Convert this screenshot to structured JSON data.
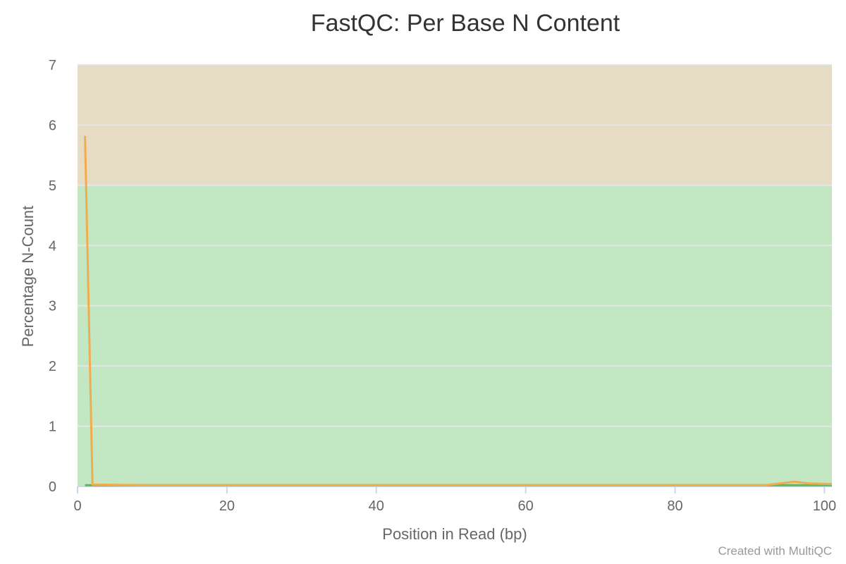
{
  "chart_data": {
    "type": "line",
    "title": "FastQC: Per Base N Content",
    "xlabel": "Position in Read (bp)",
    "ylabel": "Percentage N-Count",
    "xlim": [
      0,
      101
    ],
    "ylim": [
      0,
      7
    ],
    "x_ticks": [
      0,
      20,
      40,
      60,
      80,
      100
    ],
    "y_ticks": [
      0,
      1,
      2,
      3,
      4,
      5,
      6,
      7
    ],
    "grid": true,
    "bands": [
      {
        "from": 0,
        "to": 5,
        "color": "#c3e6c3"
      },
      {
        "from": 5,
        "to": 7,
        "color": "#e6dcc3"
      }
    ],
    "series": [
      {
        "color": "#5cb85c",
        "points": [
          [
            1,
            0.02
          ],
          [
            2,
            0.02
          ],
          [
            101,
            0.02
          ]
        ]
      },
      {
        "color": "#f0ad4e",
        "points": [
          [
            1,
            5.82
          ],
          [
            2,
            0.03
          ],
          [
            10,
            0.02
          ],
          [
            30,
            0.02
          ],
          [
            60,
            0.02
          ],
          [
            85,
            0.02
          ],
          [
            92,
            0.02
          ],
          [
            96,
            0.08
          ],
          [
            98,
            0.05
          ],
          [
            101,
            0.04
          ]
        ]
      }
    ]
  },
  "credit": "Created with MultiQC"
}
